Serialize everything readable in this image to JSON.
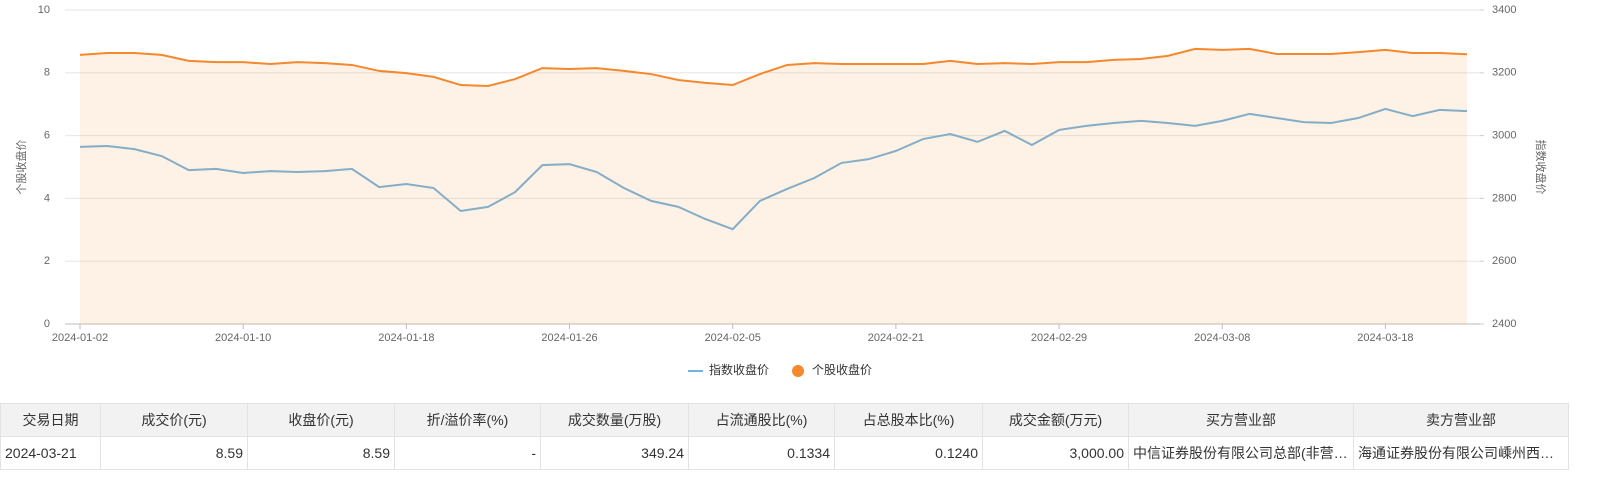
{
  "chart_data": {
    "type": "line",
    "ylabel": "个股收盘价",
    "y2label": "指数收盘价",
    "categories": [
      "2024-01-02",
      null,
      null,
      null,
      null,
      null,
      "2024-01-10",
      null,
      null,
      null,
      null,
      null,
      "2024-01-18",
      null,
      null,
      null,
      null,
      null,
      "2024-01-26",
      null,
      null,
      null,
      null,
      null,
      "2024-02-05",
      null,
      null,
      null,
      null,
      null,
      "2024-02-21",
      null,
      null,
      null,
      null,
      null,
      "2024-02-29",
      null,
      null,
      null,
      null,
      null,
      "2024-03-08",
      null,
      null,
      null,
      null,
      null,
      "2024-03-18",
      null,
      null,
      null
    ],
    "ylim": [
      0,
      10
    ],
    "yticks": [
      0,
      2,
      4,
      6,
      8,
      10
    ],
    "y2lim": [
      2400,
      3400
    ],
    "y2ticks": [
      2400,
      2600,
      2800,
      3000,
      3200,
      3400
    ],
    "grid": true,
    "legend": "bottom",
    "series": [
      {
        "name": "指数收盘价",
        "color": "#74b2df",
        "axis": "y2",
        "values": [
          2964,
          2967,
          2957,
          2935,
          2890,
          2894,
          2881,
          2887,
          2884,
          2887,
          2894,
          2836,
          2846,
          2833,
          2760,
          2773,
          2820,
          2906,
          2909,
          2884,
          2833,
          2792,
          2773,
          2734,
          2702,
          2792,
          2830,
          2865,
          2913,
          2925,
          2951,
          2989,
          3005,
          2980,
          3015,
          2970,
          3018,
          3031,
          3040,
          3047,
          3040,
          3031,
          3047,
          3069,
          3056,
          3043,
          3040,
          3056,
          3085,
          3062,
          3082,
          3078
        ]
      },
      {
        "name": "个股收盘价",
        "color": "#f5882c",
        "area": true,
        "values": [
          8.57,
          8.63,
          8.63,
          8.57,
          8.38,
          8.34,
          8.34,
          8.28,
          8.34,
          8.31,
          8.25,
          8.06,
          7.99,
          7.87,
          7.61,
          7.58,
          7.8,
          8.15,
          8.12,
          8.15,
          8.06,
          7.96,
          7.77,
          7.68,
          7.61,
          7.96,
          8.25,
          8.31,
          8.28,
          8.28,
          8.28,
          8.28,
          8.38,
          8.28,
          8.31,
          8.28,
          8.34,
          8.34,
          8.41,
          8.44,
          8.54,
          8.76,
          8.73,
          8.76,
          8.6,
          8.6,
          8.6,
          8.66,
          8.73,
          8.63,
          8.63,
          8.59
        ]
      }
    ]
  },
  "table": {
    "headers": [
      "交易日期",
      "成交价(元)",
      "收盘价(元)",
      "折/溢价率(%)",
      "成交数量(万股)",
      "占流通股比(%)",
      "占总股本比(%)",
      "成交金额(万元)",
      "买方营业部",
      "卖方营业部"
    ],
    "rows": [
      [
        "2024-03-21",
        "8.59",
        "8.59",
        "-",
        "349.24",
        "0.1334",
        "0.1240",
        "3,000.00",
        "中信证券股份有限公司总部(非营…",
        "海通证券股份有限公司嵊州西…"
      ]
    ]
  }
}
